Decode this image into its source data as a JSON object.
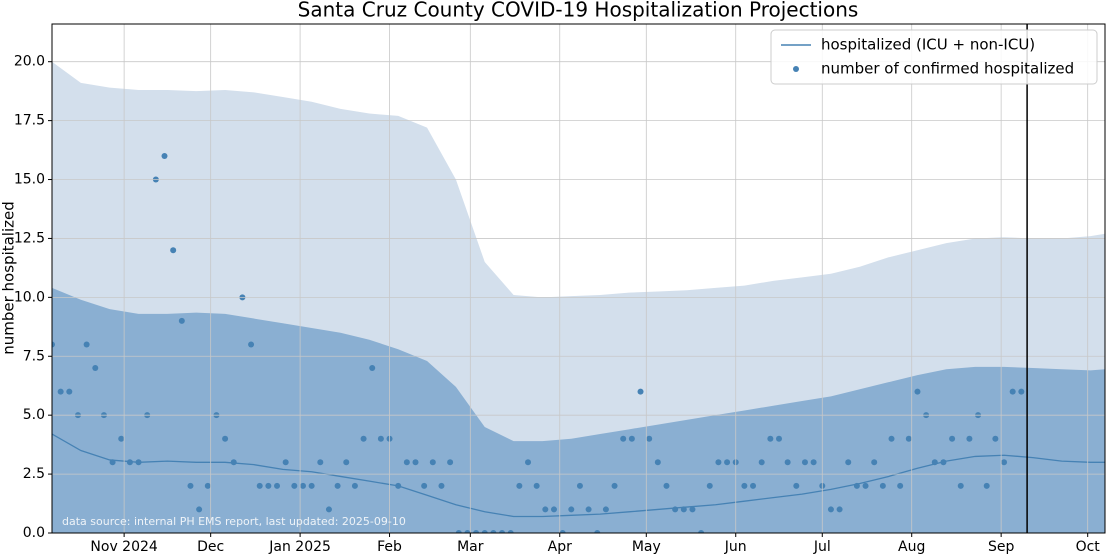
{
  "chart_data": {
    "type": "line",
    "title": "Santa Cruz County COVID-19 Hospitalization Projections",
    "y_label": "number hospitalized",
    "annotation": "data source: internal PH EMS report, last updated: 2025-09-10",
    "legend": "upper right",
    "grid": true,
    "xlim": [
      6,
      371
    ],
    "ylim": [
      0,
      21.6
    ],
    "xticks": [
      {
        "value": 31,
        "label": "Nov 2024"
      },
      {
        "value": 61,
        "label": "Dec"
      },
      {
        "value": 92,
        "label": "Jan 2025"
      },
      {
        "value": 123,
        "label": "Feb"
      },
      {
        "value": 151,
        "label": "Mar"
      },
      {
        "value": 182,
        "label": "Apr"
      },
      {
        "value": 212,
        "label": "May"
      },
      {
        "value": 243,
        "label": "Jun"
      },
      {
        "value": 273,
        "label": "Jul"
      },
      {
        "value": 304,
        "label": "Aug"
      },
      {
        "value": 335,
        "label": "Sep"
      },
      {
        "value": 365,
        "label": "Oct"
      }
    ],
    "yticks": [
      {
        "value": 0,
        "label": "0.0"
      },
      {
        "value": 2.5,
        "label": "2.5"
      },
      {
        "value": 5,
        "label": "5.0"
      },
      {
        "value": 7.5,
        "label": "7.5"
      },
      {
        "value": 10,
        "label": "10.0"
      },
      {
        "value": 12.5,
        "label": "12.5"
      },
      {
        "value": 15,
        "label": "15.0"
      },
      {
        "value": 17.5,
        "label": "17.5"
      },
      {
        "value": 20,
        "label": "20.0"
      }
    ],
    "vline": {
      "x": 344,
      "color": "#000000"
    },
    "bands": [
      {
        "color": "#d3dfec",
        "x": [
          6,
          16,
          26,
          36,
          46,
          56,
          66,
          76,
          86,
          96,
          106,
          116,
          126,
          136,
          146,
          156,
          166,
          176,
          186,
          196,
          206,
          216,
          226,
          236,
          246,
          256,
          266,
          276,
          286,
          296,
          306,
          316,
          326,
          336,
          346,
          356,
          366,
          371
        ],
        "upper": [
          20.0,
          19.1,
          18.9,
          18.8,
          18.8,
          18.75,
          18.8,
          18.7,
          18.5,
          18.3,
          18.0,
          17.8,
          17.7,
          17.2,
          15.0,
          11.5,
          10.1,
          10.0,
          10.05,
          10.1,
          10.2,
          10.25,
          10.3,
          10.4,
          10.5,
          10.7,
          10.85,
          11.0,
          11.3,
          11.7,
          12.0,
          12.3,
          12.5,
          12.55,
          12.5,
          12.5,
          12.6,
          12.7
        ]
      },
      {
        "color": "#8aafd2",
        "x": [
          6,
          16,
          26,
          36,
          46,
          56,
          66,
          76,
          86,
          96,
          106,
          116,
          126,
          136,
          146,
          156,
          166,
          176,
          186,
          196,
          206,
          216,
          226,
          236,
          246,
          256,
          266,
          276,
          286,
          296,
          306,
          316,
          326,
          336,
          346,
          356,
          366,
          371
        ],
        "upper": [
          10.4,
          9.9,
          9.5,
          9.3,
          9.3,
          9.35,
          9.3,
          9.1,
          8.9,
          8.7,
          8.5,
          8.2,
          7.8,
          7.3,
          6.2,
          4.5,
          3.9,
          3.9,
          4.0,
          4.2,
          4.4,
          4.6,
          4.8,
          5.0,
          5.2,
          5.4,
          5.6,
          5.8,
          6.1,
          6.4,
          6.7,
          6.95,
          7.05,
          7.05,
          7.0,
          6.95,
          6.9,
          6.95
        ]
      }
    ],
    "series": [
      {
        "name": "hospitalized (ICU + non-ICU)",
        "kind": "line",
        "color": "#4682b4",
        "x": [
          6,
          16,
          26,
          36,
          46,
          56,
          66,
          76,
          86,
          96,
          106,
          116,
          126,
          136,
          146,
          156,
          166,
          176,
          186,
          196,
          206,
          216,
          226,
          236,
          246,
          256,
          266,
          276,
          286,
          296,
          306,
          316,
          326,
          336,
          346,
          356,
          366,
          371
        ],
        "values": [
          4.2,
          3.5,
          3.1,
          3.0,
          3.05,
          3.0,
          3.0,
          2.9,
          2.7,
          2.6,
          2.4,
          2.2,
          2.0,
          1.6,
          1.2,
          0.9,
          0.7,
          0.7,
          0.75,
          0.8,
          0.9,
          1.0,
          1.1,
          1.2,
          1.35,
          1.5,
          1.65,
          1.85,
          2.1,
          2.4,
          2.75,
          3.05,
          3.25,
          3.3,
          3.2,
          3.05,
          3.0,
          3.0
        ]
      },
      {
        "name": "number of confirmed hospitalized",
        "kind": "scatter",
        "color": "#4682b4",
        "x": [
          6,
          9,
          12,
          15,
          18,
          21,
          24,
          27,
          30,
          33,
          36,
          39,
          42,
          45,
          48,
          51,
          54,
          57,
          60,
          63,
          66,
          69,
          72,
          75,
          78,
          81,
          84,
          87,
          90,
          93,
          96,
          99,
          102,
          105,
          108,
          111,
          114,
          117,
          120,
          123,
          126,
          129,
          132,
          135,
          138,
          141,
          144,
          147,
          150,
          153,
          156,
          159,
          162,
          165,
          168,
          171,
          174,
          177,
          180,
          183,
          186,
          189,
          192,
          195,
          198,
          201,
          204,
          207,
          210,
          213,
          216,
          219,
          222,
          225,
          228,
          231,
          234,
          237,
          240,
          243,
          246,
          249,
          252,
          255,
          258,
          261,
          264,
          267,
          270,
          273,
          276,
          279,
          282,
          285,
          288,
          291,
          294,
          297,
          300,
          303,
          306,
          309,
          312,
          315,
          318,
          321,
          324,
          327,
          330,
          333,
          336,
          339,
          342
        ],
        "values": [
          8,
          6,
          6,
          5,
          8,
          7,
          5,
          3,
          4,
          3,
          3,
          5,
          15,
          16,
          12,
          9,
          2,
          1,
          2,
          5,
          4,
          3,
          10,
          8,
          2,
          2,
          2,
          3,
          2,
          2,
          2,
          3,
          1,
          2,
          3,
          2,
          4,
          7,
          4,
          4,
          2,
          3,
          3,
          2,
          3,
          2,
          3,
          0,
          0,
          0,
          0,
          0,
          0,
          0,
          2,
          3,
          2,
          1,
          1,
          0,
          1,
          2,
          1,
          0,
          1,
          2,
          4,
          4,
          6,
          4,
          3,
          2,
          1,
          1,
          1,
          0,
          2,
          3,
          3,
          3,
          2,
          2,
          3,
          4,
          4,
          3,
          2,
          3,
          3,
          2,
          1,
          1,
          3,
          2,
          2,
          3,
          2,
          4,
          2,
          4,
          6,
          5,
          3,
          3,
          4,
          2,
          4,
          5,
          2,
          4,
          3,
          6,
          6
        ]
      }
    ]
  }
}
